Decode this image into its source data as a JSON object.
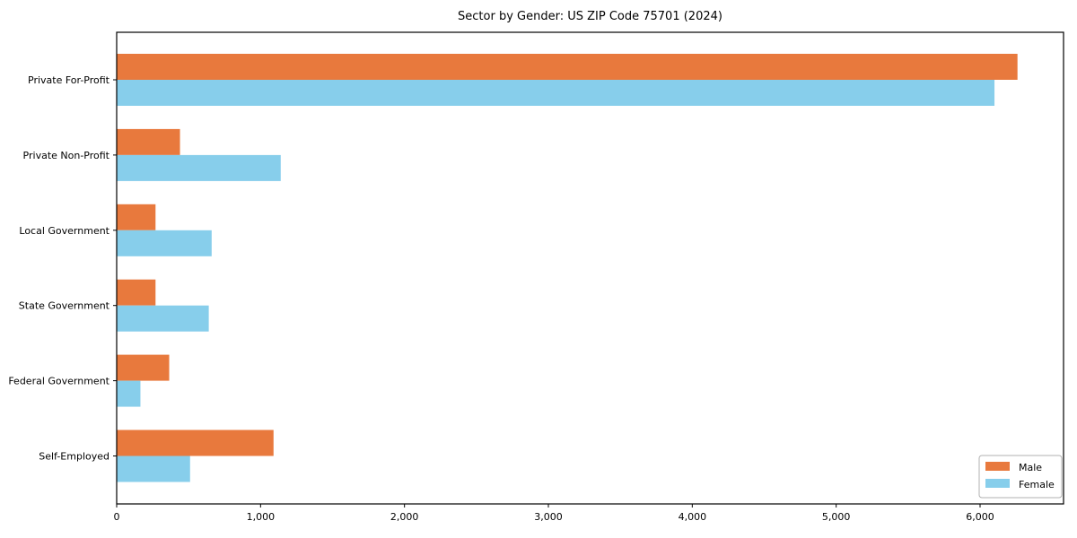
{
  "chart": {
    "title": "Sector by Gender: US ZIP Code 75701 (2024)"
  },
  "chart_data": {
    "type": "bar",
    "orientation": "horizontal",
    "title": "Sector by Gender: US ZIP Code 75701 (2024)",
    "xlabel": "",
    "ylabel": "",
    "categories": [
      "Private For-Profit",
      "Private Non-Profit",
      "Local Government",
      "State Government",
      "Federal Government",
      "Self-Employed"
    ],
    "series": [
      {
        "name": "Male",
        "color": "#E8793D",
        "values": [
          6260,
          440,
          270,
          270,
          365,
          1090
        ]
      },
      {
        "name": "Female",
        "color": "#87CEEB",
        "values": [
          6100,
          1140,
          660,
          640,
          165,
          510
        ]
      }
    ],
    "xlim": [
      0,
      6580
    ],
    "xticks": [
      0,
      1000,
      2000,
      3000,
      4000,
      5000,
      6000
    ],
    "xtick_labels": [
      "0",
      "1,000",
      "2,000",
      "3,000",
      "4,000",
      "5,000",
      "6,000"
    ],
    "grid": false,
    "legend": {
      "position": "lower right",
      "entries": [
        "Male",
        "Female"
      ]
    },
    "colors": {
      "spine": "#000000",
      "tick_text": "#000000",
      "legend_border": "#b0b0b0",
      "background": "#ffffff"
    }
  }
}
